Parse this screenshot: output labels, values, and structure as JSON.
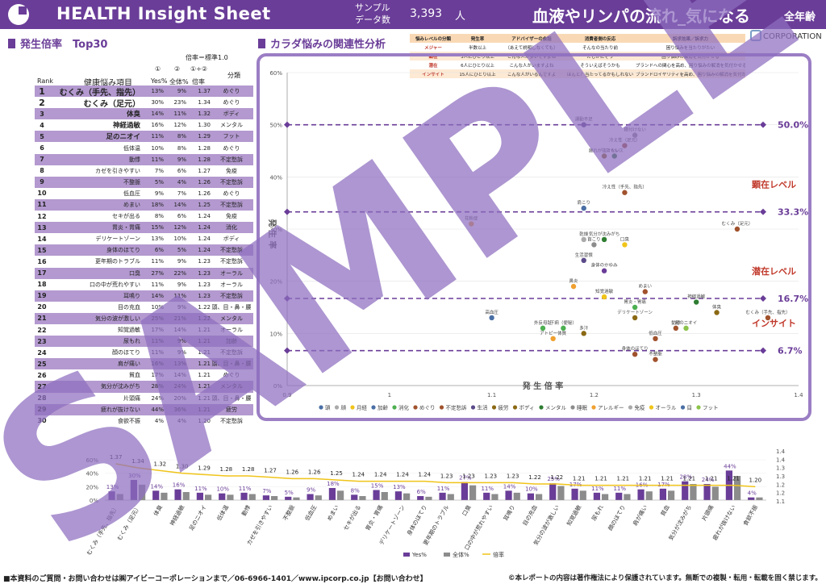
{
  "header": {
    "app_title": "HEALTH Insight Sheet",
    "sample_label": "サンプル\nデータ数",
    "sample_count": "3,393",
    "sample_unit": "人",
    "main_title": "血液やリンパの流れ_気になる",
    "age_badge": "全年齢"
  },
  "ranking": {
    "title": "発生倍率　Top30",
    "ratio_def": "倍率＝標準1.0",
    "col_marks": [
      "①",
      "②",
      "①÷②"
    ],
    "headers": {
      "rank": "Rank",
      "item": "健康悩み項目",
      "yes": "Yes%",
      "all": "全体%",
      "ratio": "倍率",
      "cat": "分類"
    },
    "rows": [
      {
        "rank": "1",
        "item": "むくみ（手先、指先）",
        "yes": "13%",
        "all": "9%",
        "ratio": "1.37",
        "cat": "めぐり"
      },
      {
        "rank": "2",
        "item": "むくみ（足元）",
        "yes": "30%",
        "all": "23%",
        "ratio": "1.34",
        "cat": "めぐり"
      },
      {
        "rank": "3",
        "item": "体臭",
        "yes": "14%",
        "all": "11%",
        "ratio": "1.32",
        "cat": "ボディ"
      },
      {
        "rank": "4",
        "item": "神経過敏",
        "yes": "16%",
        "all": "12%",
        "ratio": "1.30",
        "cat": "メンタル"
      },
      {
        "rank": "5",
        "item": "足のニオイ",
        "yes": "11%",
        "all": "8%",
        "ratio": "1.29",
        "cat": "フット"
      },
      {
        "rank": "6",
        "item": "低体温",
        "yes": "10%",
        "all": "8%",
        "ratio": "1.28",
        "cat": "めぐり"
      },
      {
        "rank": "7",
        "item": "動悸",
        "yes": "11%",
        "all": "9%",
        "ratio": "1.28",
        "cat": "不定愁訴"
      },
      {
        "rank": "8",
        "item": "カゼを引きやすい",
        "yes": "7%",
        "all": "6%",
        "ratio": "1.27",
        "cat": "免疫"
      },
      {
        "rank": "9",
        "item": "不整脈",
        "yes": "5%",
        "all": "4%",
        "ratio": "1.26",
        "cat": "不定愁訴"
      },
      {
        "rank": "10",
        "item": "低血圧",
        "yes": "9%",
        "all": "7%",
        "ratio": "1.26",
        "cat": "めぐり"
      },
      {
        "rank": "11",
        "item": "めまい",
        "yes": "18%",
        "all": "14%",
        "ratio": "1.25",
        "cat": "不定愁訴"
      },
      {
        "rank": "12",
        "item": "セキが出る",
        "yes": "8%",
        "all": "6%",
        "ratio": "1.24",
        "cat": "免疫"
      },
      {
        "rank": "13",
        "item": "胃炎・胃痛",
        "yes": "15%",
        "all": "12%",
        "ratio": "1.24",
        "cat": "消化"
      },
      {
        "rank": "14",
        "item": "デリケートゾーン",
        "yes": "13%",
        "all": "10%",
        "ratio": "1.24",
        "cat": "ボディ"
      },
      {
        "rank": "15",
        "item": "身体のほてり",
        "yes": "6%",
        "all": "5%",
        "ratio": "1.24",
        "cat": "不定愁訴"
      },
      {
        "rank": "16",
        "item": "更年期のトラブル",
        "yes": "11%",
        "all": "9%",
        "ratio": "1.23",
        "cat": "不定愁訴"
      },
      {
        "rank": "17",
        "item": "口臭",
        "yes": "27%",
        "all": "22%",
        "ratio": "1.23",
        "cat": "オーラル"
      },
      {
        "rank": "18",
        "item": "口の中が荒れやすい",
        "yes": "11%",
        "all": "9%",
        "ratio": "1.23",
        "cat": "オーラル"
      },
      {
        "rank": "19",
        "item": "耳鳴り",
        "yes": "14%",
        "all": "11%",
        "ratio": "1.23",
        "cat": "不定愁訴"
      },
      {
        "rank": "20",
        "item": "目の充血",
        "yes": "10%",
        "all": "9%",
        "ratio": "1.22",
        "cat": "頭、目・鼻・腰"
      },
      {
        "rank": "21",
        "item": "気分の波が激しい",
        "yes": "25%",
        "all": "21%",
        "ratio": "1.22",
        "cat": "メンタル"
      },
      {
        "rank": "22",
        "item": "知覚過敏",
        "yes": "17%",
        "all": "14%",
        "ratio": "1.21",
        "cat": "オーラル"
      },
      {
        "rank": "23",
        "item": "尿もれ",
        "yes": "11%",
        "all": "9%",
        "ratio": "1.21",
        "cat": "加齢"
      },
      {
        "rank": "24",
        "item": "顔のほてり",
        "yes": "11%",
        "all": "9%",
        "ratio": "1.21",
        "cat": "不定愁訴"
      },
      {
        "rank": "25",
        "item": "肩が痛い",
        "yes": "16%",
        "all": "13%",
        "ratio": "1.21",
        "cat": "頭、目・鼻・腰"
      },
      {
        "rank": "26",
        "item": "貧血",
        "yes": "17%",
        "all": "14%",
        "ratio": "1.21",
        "cat": "めぐり"
      },
      {
        "rank": "27",
        "item": "気分が沈みがち",
        "yes": "28%",
        "all": "24%",
        "ratio": "1.21",
        "cat": "メンタル"
      },
      {
        "rank": "28",
        "item": "片頭痛",
        "yes": "24%",
        "all": "20%",
        "ratio": "1.21",
        "cat": "頭、目・鼻・腰"
      },
      {
        "rank": "29",
        "item": "疲れが抜けない",
        "yes": "44%",
        "all": "36%",
        "ratio": "1.21",
        "cat": "疲労"
      },
      {
        "rank": "30",
        "item": "食欲不振",
        "yes": "4%",
        "all": "4%",
        "ratio": "1.20",
        "cat": "不定愁訴"
      }
    ]
  },
  "analysis": {
    "title": "カラダ悩みの関連性分析",
    "corp": "CORPORATION",
    "legend_table": {
      "headers": [
        "悩みレベルの分類",
        "発生率",
        "アドバイザーの会話",
        "消費者側の反応",
        "訴求効果／訴求力"
      ],
      "rows": [
        [
          "メジャー",
          "半数以上",
          "（あえて説明しなくても）",
          "そんなの当たり前",
          "困り悩みを当たりがたい"
        ],
        [
          "顕在",
          "3人にひとり以上",
          "こんな人が多いですよね",
          "たしかにそう",
          "困り悩みの解消を気付かせる"
        ],
        [
          "潜在",
          "6人にひとり以上",
          "こんな人がいますよね",
          "そういえばそうかも",
          "ブランドへの関心を高め、困り悩みの解消を気付かせる"
        ],
        [
          "インサイト",
          "15人にひとり以上",
          "こんな人がいるんですよ",
          "ほんと？当たってるかもしれない",
          "ブランドロイヤリティを高め、困り悩みの解消を気付かせる"
        ]
      ]
    }
  },
  "colors": {
    "brand": "#6a3d98",
    "row_alt": "#b399cf",
    "frame": "#9b7ec4",
    "dash": "#6a3d98",
    "level_text": "#c0392b",
    "bar_yes": "#6a3d98",
    "bar_all": "#8c8c8c",
    "line_ratio": "#f0c419",
    "watermark": "#8e6dbf"
  },
  "chart_data": [
    {
      "type": "scatter",
      "xlabel": "発 生 倍 率",
      "ylabel": "発 生 率",
      "xlim": [
        0.9,
        1.4
      ],
      "ylim": [
        0,
        60
      ],
      "x_ticks": [
        "0.9",
        "1",
        "1.1",
        "1.2",
        "1.3",
        "1.4"
      ],
      "y_ticks": [
        "0%",
        "10%",
        "20%",
        "30%",
        "40%",
        "50%",
        "60%"
      ],
      "thresholds": [
        {
          "value": 50.0,
          "label": "50.0%"
        },
        {
          "value": 33.3,
          "label": "33.3%",
          "level": "顕在レベル"
        },
        {
          "value": 16.7,
          "label": "16.7%",
          "level": "潜在レベル"
        },
        {
          "value": 6.7,
          "label": "6.7%",
          "level": "インサイト"
        }
      ],
      "legend": [
        "頭",
        "顔",
        "月経",
        "加齢",
        "消化",
        "めぐり",
        "不定愁訴",
        "生活",
        "疲労",
        "ボディ",
        "メンタル",
        "睡眠",
        "アレルギー",
        "免疫",
        "オーラル",
        "目",
        "フット"
      ],
      "points": [
        {
          "label": "運動不足",
          "x": 1.19,
          "y": 50,
          "color": "#5b4a8a"
        },
        {
          "label": "寝付けない",
          "x": 1.24,
          "y": 48,
          "color": "#8c8c8c"
        },
        {
          "label": "冷え性（足元）",
          "x": 1.23,
          "y": 46,
          "color": "#a0522d"
        },
        {
          "label": "ストレス",
          "x": 1.22,
          "y": 44,
          "color": "#2e7d32"
        },
        {
          "label": "疲れが抜けない",
          "x": 1.21,
          "y": 44,
          "color": "#8b6914"
        },
        {
          "label": "冷え性（手先、指先）",
          "x": 1.23,
          "y": 37,
          "color": "#a0522d"
        },
        {
          "label": "肩こり",
          "x": 1.19,
          "y": 34,
          "color": "#4a6fa5"
        },
        {
          "label": "花粉症",
          "x": 1.08,
          "y": 31,
          "color": "#f0a030"
        },
        {
          "label": "乾燥",
          "x": 1.19,
          "y": 28,
          "color": "#aaaaaa"
        },
        {
          "label": "首こり",
          "x": 1.2,
          "y": 27,
          "color": "#8c8c8c"
        },
        {
          "label": "口臭",
          "x": 1.23,
          "y": 27,
          "color": "#f0c419"
        },
        {
          "label": "気分が沈みがち",
          "x": 1.21,
          "y": 28,
          "color": "#2e7d32"
        },
        {
          "label": "生活習慣",
          "x": 1.19,
          "y": 24,
          "color": "#5b4a8a"
        },
        {
          "label": "身体のかゆみ",
          "x": 1.21,
          "y": 22,
          "color": "#6a3d98"
        },
        {
          "label": "むくみ（足元）",
          "x": 1.34,
          "y": 30,
          "color": "#a0522d"
        },
        {
          "label": "鼻炎",
          "x": 1.18,
          "y": 19,
          "color": "#f0a030"
        },
        {
          "label": "神経過敏",
          "x": 1.3,
          "y": 16,
          "color": "#2e7d32"
        },
        {
          "label": "体臭",
          "x": 1.32,
          "y": 14,
          "color": "#8b6914"
        },
        {
          "label": "めまい",
          "x": 1.25,
          "y": 18,
          "color": "#a0522d"
        },
        {
          "label": "胃炎・胃痛",
          "x": 1.24,
          "y": 15,
          "color": "#4caf50"
        },
        {
          "label": "高血圧",
          "x": 1.1,
          "y": 13,
          "color": "#4a6fa5"
        },
        {
          "label": "外反母趾",
          "x": 1.15,
          "y": 11,
          "color": "#4caf50"
        },
        {
          "label": "下痢（便秘）",
          "x": 1.17,
          "y": 11,
          "color": "#4caf50"
        },
        {
          "label": "アトピー体質",
          "x": 1.16,
          "y": 9,
          "color": "#f0a030"
        },
        {
          "label": "多汗",
          "x": 1.19,
          "y": 10,
          "color": "#8b6914"
        },
        {
          "label": "知覚過敏",
          "x": 1.21,
          "y": 17,
          "color": "#f0c419"
        },
        {
          "label": "不整脈",
          "x": 1.26,
          "y": 5,
          "color": "#a0522d"
        },
        {
          "label": "身体のほてり",
          "x": 1.24,
          "y": 6,
          "color": "#a0522d"
        },
        {
          "label": "むくみ（手先、指先）",
          "x": 1.37,
          "y": 13,
          "color": "#a0522d"
        },
        {
          "label": "足のニオイ",
          "x": 1.29,
          "y": 11,
          "color": "#8bc34a"
        },
        {
          "label": "低血圧",
          "x": 1.26,
          "y": 9,
          "color": "#a0522d"
        },
        {
          "label": "動悸",
          "x": 1.28,
          "y": 11,
          "color": "#a0522d"
        },
        {
          "label": "デリケートゾーン",
          "x": 1.24,
          "y": 13,
          "color": "#8b6914"
        }
      ]
    },
    {
      "type": "bar",
      "categories": [
        "むくみ（手先、指先）",
        "むくみ（足元）",
        "体臭",
        "神経過敏",
        "足のニオイ",
        "低体温",
        "動悸",
        "カゼを引きやすい",
        "不整脈",
        "低血圧",
        "めまい",
        "セキが出る",
        "胃炎・胃痛",
        "デリケートゾーン",
        "身体のほてり",
        "更年期のトラブル",
        "口臭",
        "口の中が荒れやすい",
        "耳鳴り",
        "目の充血",
        "気分の波が激しい",
        "知覚過敏",
        "尿もれ",
        "顔のほてり",
        "肩が痛い",
        "貧血",
        "気分が沈みがち",
        "片頭痛",
        "疲れが抜けない",
        "食欲不振"
      ],
      "series": [
        {
          "name": "Yes%",
          "values": [
            13,
            30,
            14,
            16,
            11,
            10,
            11,
            7,
            5,
            9,
            18,
            8,
            15,
            13,
            6,
            11,
            27,
            11,
            14,
            10,
            25,
            17,
            11,
            11,
            16,
            17,
            28,
            24,
            44,
            4
          ],
          "axis": "left"
        },
        {
          "name": "全体%",
          "values": [
            9,
            23,
            11,
            12,
            8,
            8,
            9,
            6,
            4,
            7,
            14,
            6,
            12,
            10,
            5,
            9,
            22,
            9,
            11,
            9,
            21,
            14,
            9,
            9,
            13,
            14,
            24,
            20,
            36,
            4
          ],
          "axis": "left"
        },
        {
          "name": "倍率",
          "type": "line",
          "values": [
            1.37,
            1.34,
            1.32,
            1.3,
            1.29,
            1.28,
            1.28,
            1.27,
            1.26,
            1.26,
            1.25,
            1.24,
            1.24,
            1.24,
            1.24,
            1.23,
            1.23,
            1.23,
            1.23,
            1.22,
            1.22,
            1.21,
            1.21,
            1.21,
            1.21,
            1.21,
            1.21,
            1.21,
            1.21,
            1.2
          ],
          "axis": "right"
        }
      ],
      "left_ticks": [
        "0%",
        "20%",
        "40%",
        "60%"
      ],
      "right_ticks": [
        "1.1",
        "1.2",
        "1.2",
        "1.3",
        "1.3",
        "1.4",
        "1.4"
      ],
      "ylim_left": [
        0,
        60
      ],
      "ylim_right": [
        1.1,
        1.4
      ]
    }
  ],
  "watermark": "SAMPLE",
  "footer": {
    "left": "■本資料のご質問・お問い合わせは㈱アイビーコーポレーションまで／06-6966-1401／www.ipcorp.co.jp【お問い合わせ】",
    "right": "©本レポートの内容は著作権法により保護されています。無断での複製・転用・転載を固く禁じます。"
  }
}
